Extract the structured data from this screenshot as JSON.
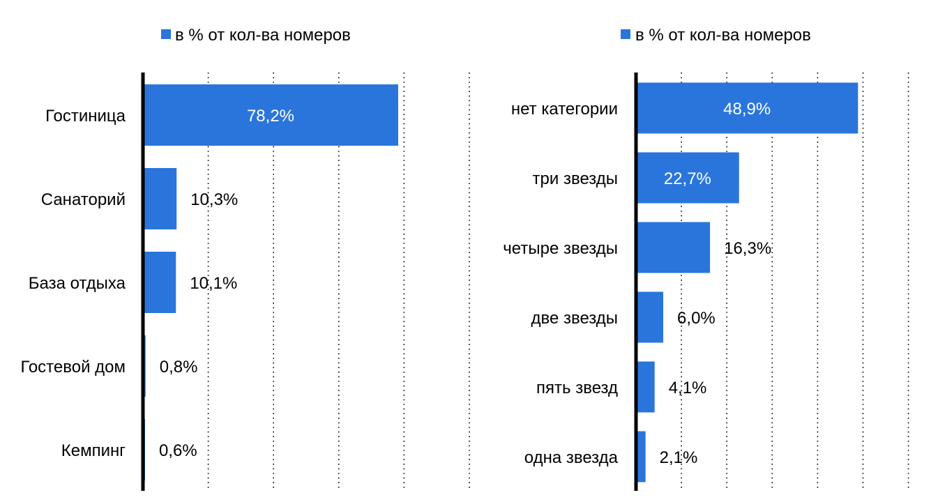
{
  "chart_data": [
    {
      "type": "bar",
      "orientation": "horizontal",
      "legend": "в % от кол-ва номеров",
      "legend_position": "top",
      "categories": [
        "Гостиница",
        "Санаторий",
        "База отдыха",
        "Гостевой дом",
        "Кемпинг"
      ],
      "series": [
        {
          "name": "в % от кол-ва номеров",
          "values": [
            78.2,
            10.3,
            10.1,
            0.8,
            0.6
          ],
          "labels": [
            "78,2%",
            "10,3%",
            "10,1%",
            "0,8%",
            "0,6%"
          ]
        }
      ],
      "xlim": [
        0,
        100
      ],
      "grid": "vertical dotted"
    },
    {
      "type": "bar",
      "orientation": "horizontal",
      "legend": "в % от кол-ва номеров",
      "legend_position": "top",
      "categories": [
        "нет категории",
        "три звезды",
        "четыре звезды",
        "две звезды",
        "пять звезд",
        "одна звезда"
      ],
      "series": [
        {
          "name": "в % от кол-ва номеров",
          "values": [
            48.9,
            22.7,
            16.3,
            6.0,
            4.1,
            2.1
          ],
          "labels": [
            "48,9%",
            "22,7%",
            "16,3%",
            "6,0%",
            "4,1%",
            "2,1%"
          ]
        }
      ],
      "xlim": [
        0,
        60
      ],
      "grid": "vertical dotted"
    }
  ],
  "colors": {
    "bar": "#2a75dc",
    "axis": "#000000",
    "grid": "#000000",
    "label_inside": "#ffffff",
    "label_outside": "#000000"
  }
}
